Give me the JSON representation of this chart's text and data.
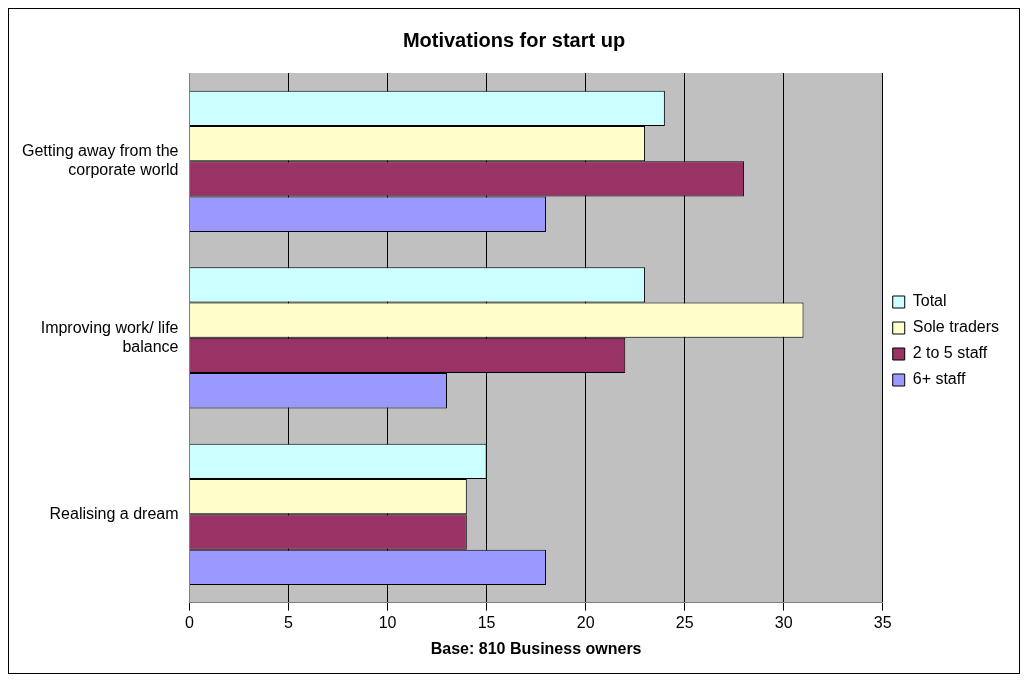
{
  "chart_data": {
    "type": "bar",
    "orientation": "horizontal",
    "title": "Motivations for start up",
    "xlabel": "Base: 810 Business owners",
    "categories": [
      "Getting away from the corporate world",
      "Improving work/ life balance",
      "Realising a dream"
    ],
    "series": [
      {
        "name": "Total",
        "color": "#ccffff",
        "values": [
          24,
          23,
          15
        ]
      },
      {
        "name": "Sole traders",
        "color": "#ffffcc",
        "values": [
          23,
          31,
          14
        ]
      },
      {
        "name": "2 to 5 staff",
        "color": "#993366",
        "values": [
          28,
          22,
          14
        ]
      },
      {
        "name": "6+ staff",
        "color": "#9999ff",
        "values": [
          18,
          13,
          18
        ]
      }
    ],
    "xlim": [
      0,
      35
    ],
    "xticks": [
      0,
      5,
      10,
      15,
      20,
      25,
      30,
      35
    ],
    "grid": "x",
    "legend": "right"
  }
}
